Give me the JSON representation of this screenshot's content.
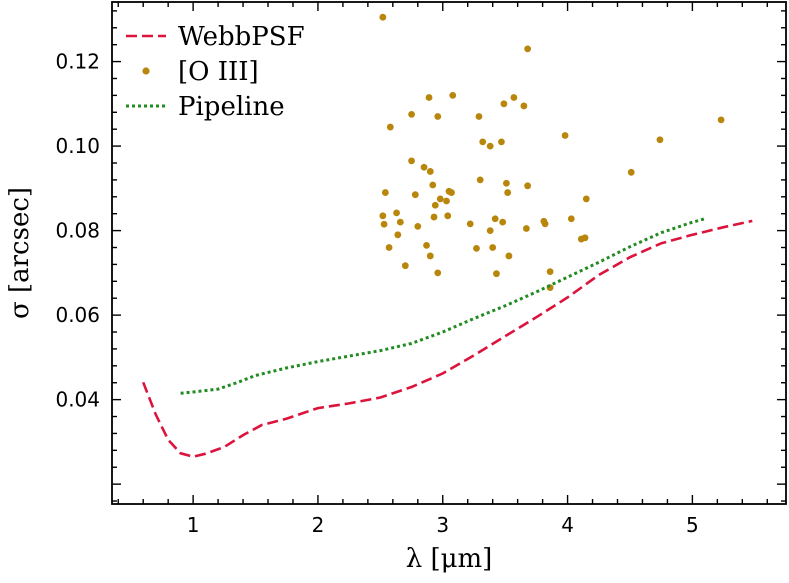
{
  "chart_data": {
    "type": "line",
    "xlabel": "λ [μm]",
    "ylabel": "σ [arcsec]",
    "xlim": [
      0.35,
      5.75
    ],
    "ylim": [
      0.0153,
      0.1341
    ],
    "xticks": [
      1,
      2,
      3,
      4,
      5
    ],
    "xtick_labels": [
      "1",
      "2",
      "3",
      "4",
      "5"
    ],
    "yticks": [
      0.04,
      0.06,
      0.08,
      0.1,
      0.12
    ],
    "ytick_labels": [
      "0.04",
      "0.06",
      "0.08",
      "0.10",
      "0.12"
    ],
    "grid": false,
    "legend_position": "top-left",
    "series": [
      {
        "name": "WebbPSF",
        "style": "dashed",
        "color": "#dc143c",
        "points": [
          [
            0.6,
            0.0441
          ],
          [
            0.7,
            0.0365
          ],
          [
            0.8,
            0.0305
          ],
          [
            0.9,
            0.0273
          ],
          [
            1.0,
            0.0265
          ],
          [
            1.1,
            0.0272
          ],
          [
            1.25,
            0.0288
          ],
          [
            1.4,
            0.0316
          ],
          [
            1.55,
            0.034
          ],
          [
            1.75,
            0.0355
          ],
          [
            2.0,
            0.038
          ],
          [
            2.25,
            0.0391
          ],
          [
            2.5,
            0.0405
          ],
          [
            2.75,
            0.043
          ],
          [
            3.0,
            0.0462
          ],
          [
            3.25,
            0.0505
          ],
          [
            3.5,
            0.055
          ],
          [
            3.75,
            0.0595
          ],
          [
            4.0,
            0.0642
          ],
          [
            4.25,
            0.0695
          ],
          [
            4.5,
            0.0737
          ],
          [
            4.75,
            0.077
          ],
          [
            5.0,
            0.079
          ],
          [
            5.25,
            0.0808
          ],
          [
            5.48,
            0.0823
          ]
        ]
      },
      {
        "name": "[O III]",
        "style": "points",
        "color": "#b8860b",
        "points": [
          [
            2.52,
            0.1305
          ],
          [
            2.58,
            0.1045
          ],
          [
            2.54,
            0.089
          ],
          [
            2.52,
            0.0835
          ],
          [
            2.53,
            0.0815
          ],
          [
            2.57,
            0.076
          ],
          [
            2.63,
            0.0842
          ],
          [
            2.66,
            0.082
          ],
          [
            2.64,
            0.079
          ],
          [
            2.7,
            0.0717
          ],
          [
            2.75,
            0.1075
          ],
          [
            2.75,
            0.0965
          ],
          [
            2.78,
            0.0885
          ],
          [
            2.8,
            0.081
          ],
          [
            2.85,
            0.095
          ],
          [
            2.87,
            0.0765
          ],
          [
            2.89,
            0.1115
          ],
          [
            2.9,
            0.094
          ],
          [
            2.9,
            0.074
          ],
          [
            2.92,
            0.0908
          ],
          [
            2.93,
            0.0832
          ],
          [
            2.94,
            0.086
          ],
          [
            2.96,
            0.107
          ],
          [
            2.96,
            0.07
          ],
          [
            2.98,
            0.0875
          ],
          [
            3.03,
            0.087
          ],
          [
            3.04,
            0.0835
          ],
          [
            3.05,
            0.0893
          ],
          [
            3.07,
            0.089
          ],
          [
            3.08,
            0.112
          ],
          [
            3.22,
            0.0816
          ],
          [
            3.27,
            0.0758
          ],
          [
            3.29,
            0.107
          ],
          [
            3.3,
            0.092
          ],
          [
            3.32,
            0.101
          ],
          [
            3.38,
            0.1
          ],
          [
            3.38,
            0.08
          ],
          [
            3.4,
            0.076
          ],
          [
            3.42,
            0.0828
          ],
          [
            3.43,
            0.0698
          ],
          [
            3.47,
            0.101
          ],
          [
            3.48,
            0.082
          ],
          [
            3.49,
            0.11
          ],
          [
            3.51,
            0.0912
          ],
          [
            3.52,
            0.089
          ],
          [
            3.53,
            0.074
          ],
          [
            3.57,
            0.1115
          ],
          [
            3.65,
            0.1095
          ],
          [
            3.67,
            0.0805
          ],
          [
            3.68,
            0.0906
          ],
          [
            3.68,
            0.123
          ],
          [
            3.81,
            0.0822
          ],
          [
            3.82,
            0.0816
          ],
          [
            3.86,
            0.0703
          ],
          [
            3.86,
            0.0665
          ],
          [
            3.98,
            0.1025
          ],
          [
            4.03,
            0.0828
          ],
          [
            4.11,
            0.078
          ],
          [
            4.14,
            0.0783
          ],
          [
            4.15,
            0.0875
          ],
          [
            4.51,
            0.0938
          ],
          [
            4.74,
            0.1015
          ],
          [
            5.23,
            0.1062
          ]
        ]
      },
      {
        "name": "Pipeline",
        "style": "dotted",
        "color": "#228b22",
        "points": [
          [
            0.9,
            0.0415
          ],
          [
            1.0,
            0.0418
          ],
          [
            1.2,
            0.0425
          ],
          [
            1.35,
            0.044
          ],
          [
            1.5,
            0.0457
          ],
          [
            1.75,
            0.0475
          ],
          [
            2.0,
            0.049
          ],
          [
            2.25,
            0.0503
          ],
          [
            2.5,
            0.0516
          ],
          [
            2.75,
            0.0533
          ],
          [
            3.0,
            0.056
          ],
          [
            3.25,
            0.0592
          ],
          [
            3.5,
            0.0622
          ],
          [
            3.75,
            0.0655
          ],
          [
            4.0,
            0.069
          ],
          [
            4.25,
            0.0725
          ],
          [
            4.5,
            0.0762
          ],
          [
            4.75,
            0.0795
          ],
          [
            5.0,
            0.082
          ],
          [
            5.1,
            0.0828
          ]
        ]
      }
    ]
  }
}
